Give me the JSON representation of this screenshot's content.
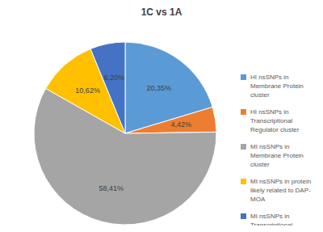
{
  "chart_data": {
    "type": "pie",
    "title": "1C vs 1A",
    "categories": [
      "HI nsSNPs in Membrane Protein cluster",
      "HI nsSNPs in Transcriptional Regulator cluster",
      "MI nsSNPs in Membrane Protein cluster",
      "MI nsSNPs in protein likely related to DAP-MOA",
      "MI nsSNPs in Transcriptional Regulator cluster"
    ],
    "values": [
      20.35,
      4.42,
      58.41,
      10.62,
      6.2
    ],
    "value_labels": [
      "20,35%",
      "4,42%",
      "58,41%",
      "10,62%",
      "6,20%"
    ],
    "colors": [
      "#5b9bd5",
      "#ed7d31",
      "#a5a5a5",
      "#ffc000",
      "#4472c4"
    ],
    "data_labels": true,
    "legend": "right"
  }
}
